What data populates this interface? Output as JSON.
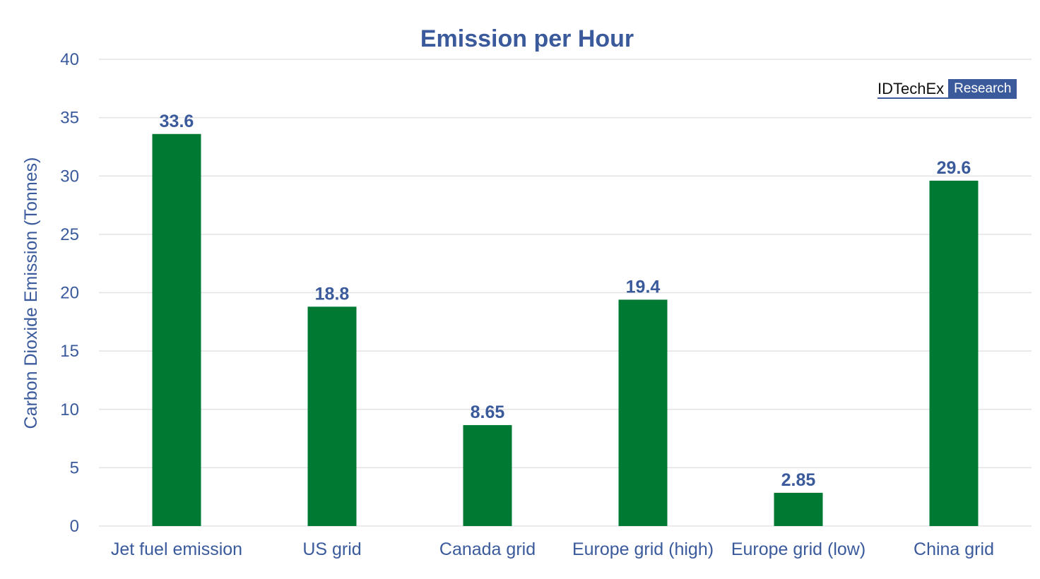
{
  "colors": {
    "bar": "#007a33",
    "text": "#3a5a9c",
    "grid": "#e3e3e3"
  },
  "logo": {
    "name": "IDTechEx",
    "tag": "Research"
  },
  "chart_data": {
    "type": "bar",
    "title": "Emission per Hour",
    "xlabel": "",
    "ylabel": "Carbon Dioxide Emission (Tonnes)",
    "ylim": [
      0,
      40
    ],
    "yticks": [
      0,
      5,
      10,
      15,
      20,
      25,
      30,
      35,
      40
    ],
    "grid": true,
    "categories": [
      "Jet fuel emission",
      "US grid",
      "Canada grid",
      "Europe grid (high)",
      "Europe grid (low)",
      "China grid"
    ],
    "values": [
      33.6,
      18.8,
      8.65,
      19.4,
      2.85,
      29.6
    ],
    "data_labels": [
      "33.6",
      "18.8",
      "8.65",
      "19.4",
      "2.85",
      "29.6"
    ]
  }
}
